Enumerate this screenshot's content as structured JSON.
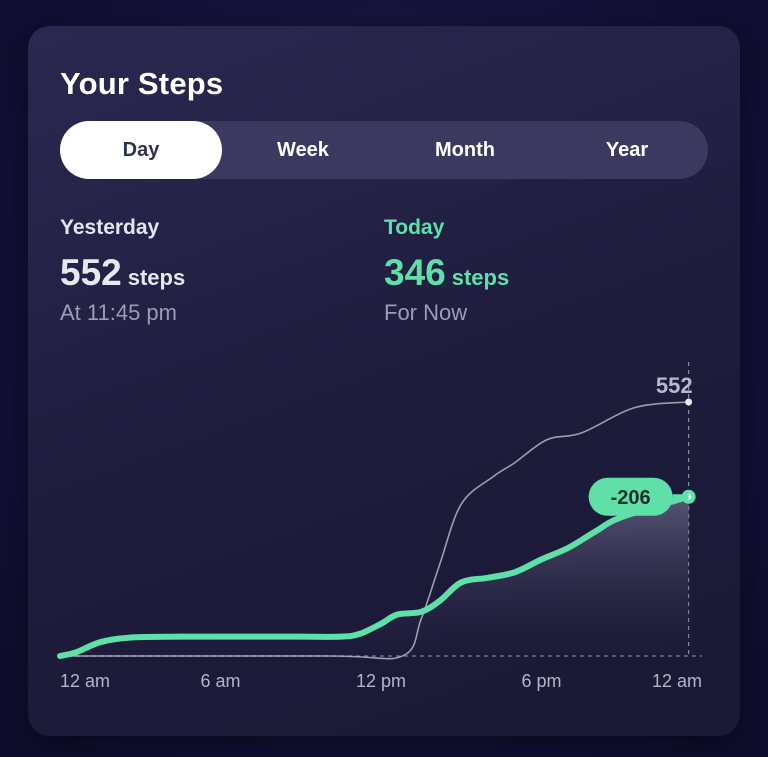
{
  "title": "Your Steps",
  "tabs": [
    {
      "label": "Day",
      "active": true
    },
    {
      "label": "Week",
      "active": false
    },
    {
      "label": "Month",
      "active": false
    },
    {
      "label": "Year",
      "active": false
    }
  ],
  "yesterday": {
    "label": "Yesterday",
    "steps": "552",
    "unit": "steps",
    "sub": "At 11:45 pm"
  },
  "today": {
    "label": "Today",
    "steps": "346",
    "unit": "steps",
    "sub": "For Now"
  },
  "colors": {
    "accent": "#5ee0a8",
    "yesterday_line": "#c8c8d8"
  },
  "chart_data": {
    "type": "line",
    "x_labels": [
      "12 am",
      "6 am",
      "12 pm",
      "6 pm",
      "12 am"
    ],
    "xlim": [
      0,
      24
    ],
    "ylim": [
      0,
      552
    ],
    "series": [
      {
        "x": [
          0,
          10,
          12.8,
          13.5,
          14.2,
          15.0,
          16.2,
          17.0,
          18.2,
          19.5,
          21.5,
          23.5
        ],
        "y": [
          0,
          0,
          0,
          80,
          200,
          330,
          390,
          420,
          470,
          485,
          540,
          552
        ]
      },
      {
        "x": [
          0,
          0.6,
          1.5,
          2.6,
          4.5,
          6.0,
          7.5,
          9.0,
          10.5,
          11.2,
          12.0,
          12.6,
          13.5,
          14.2,
          15.0,
          16.0,
          17.0,
          18.0,
          19.0,
          20.0,
          21.0,
          23.5
        ],
        "y": [
          0,
          8,
          30,
          40,
          42,
          42,
          42,
          42,
          42,
          48,
          70,
          90,
          96,
          120,
          160,
          170,
          182,
          210,
          235,
          270,
          302,
          346
        ]
      }
    ],
    "annotations": [
      {
        "text": "552"
      },
      {
        "text": "-206"
      }
    ]
  }
}
